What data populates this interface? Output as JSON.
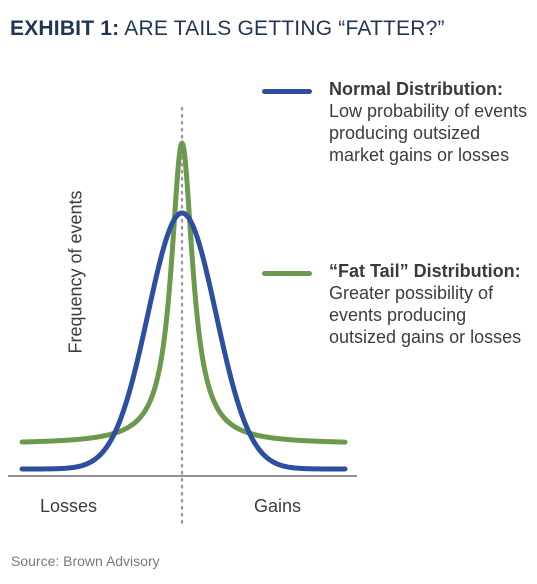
{
  "title": {
    "bold": "EXHIBIT 1:",
    "rest": "ARE TAILS GETTING “FATTER?”"
  },
  "y_axis_label": "Frequency of events",
  "x_axis_labels": {
    "left": "Losses",
    "right": "Gains"
  },
  "legend": {
    "normal": {
      "color": "#2e4fa0",
      "bold": "Normal Distribution:",
      "text": "Low probability of events producing outsized market gains or losses"
    },
    "fat_tail": {
      "color": "#6b9a4e",
      "bold": "“Fat Tail” Distribution:",
      "text": "Greater possibility of events producing outsized gains or losses"
    }
  },
  "source": "Source: Brown Advisory"
}
